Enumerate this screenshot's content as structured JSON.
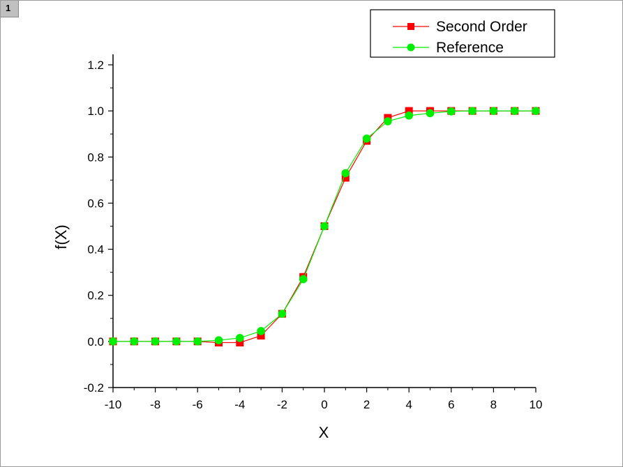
{
  "window": {
    "page_number": "1"
  },
  "chart_data": {
    "type": "line",
    "xlabel": "X",
    "ylabel": "f(X)",
    "xlim": [
      -10,
      10
    ],
    "ylim": [
      -0.2,
      1.25
    ],
    "xticks": [
      -10,
      -8,
      -6,
      -4,
      -2,
      0,
      2,
      4,
      6,
      8,
      10
    ],
    "xtick_labels": [
      "-10",
      "-8",
      "-6",
      "-4",
      "-2",
      "0",
      "2",
      "4",
      "6",
      "8",
      "10"
    ],
    "yticks": [
      -0.2,
      0.0,
      0.2,
      0.4,
      0.6,
      0.8,
      1.0,
      1.2
    ],
    "ytick_labels": [
      "-0.2",
      "0.0",
      "0.2",
      "0.4",
      "0.6",
      "0.8",
      "1.0",
      "1.2"
    ],
    "grid": false,
    "legend_position": "top-right",
    "x": [
      -10,
      -9,
      -8,
      -7,
      -6,
      -5,
      -4,
      -3,
      -2,
      -1,
      0,
      1,
      2,
      3,
      4,
      5,
      6,
      7,
      8,
      9,
      10
    ],
    "series": [
      {
        "name": "Second Order",
        "color": "#ff0000",
        "marker": "square",
        "values": [
          0.0,
          0.0,
          0.0,
          0.0,
          0.0,
          -0.005,
          -0.005,
          0.025,
          0.12,
          0.28,
          0.5,
          0.71,
          0.87,
          0.97,
          1.0,
          1.0,
          1.0,
          1.0,
          1.0,
          1.0,
          1.0
        ]
      },
      {
        "name": "Reference",
        "color": "#00ee00",
        "marker": "circle",
        "values": [
          0.0,
          0.0,
          0.0,
          0.0,
          0.0,
          0.005,
          0.015,
          0.045,
          0.12,
          0.27,
          0.5,
          0.73,
          0.88,
          0.955,
          0.98,
          0.99,
          0.998,
          1.0,
          1.0,
          1.0,
          1.0
        ]
      }
    ]
  }
}
